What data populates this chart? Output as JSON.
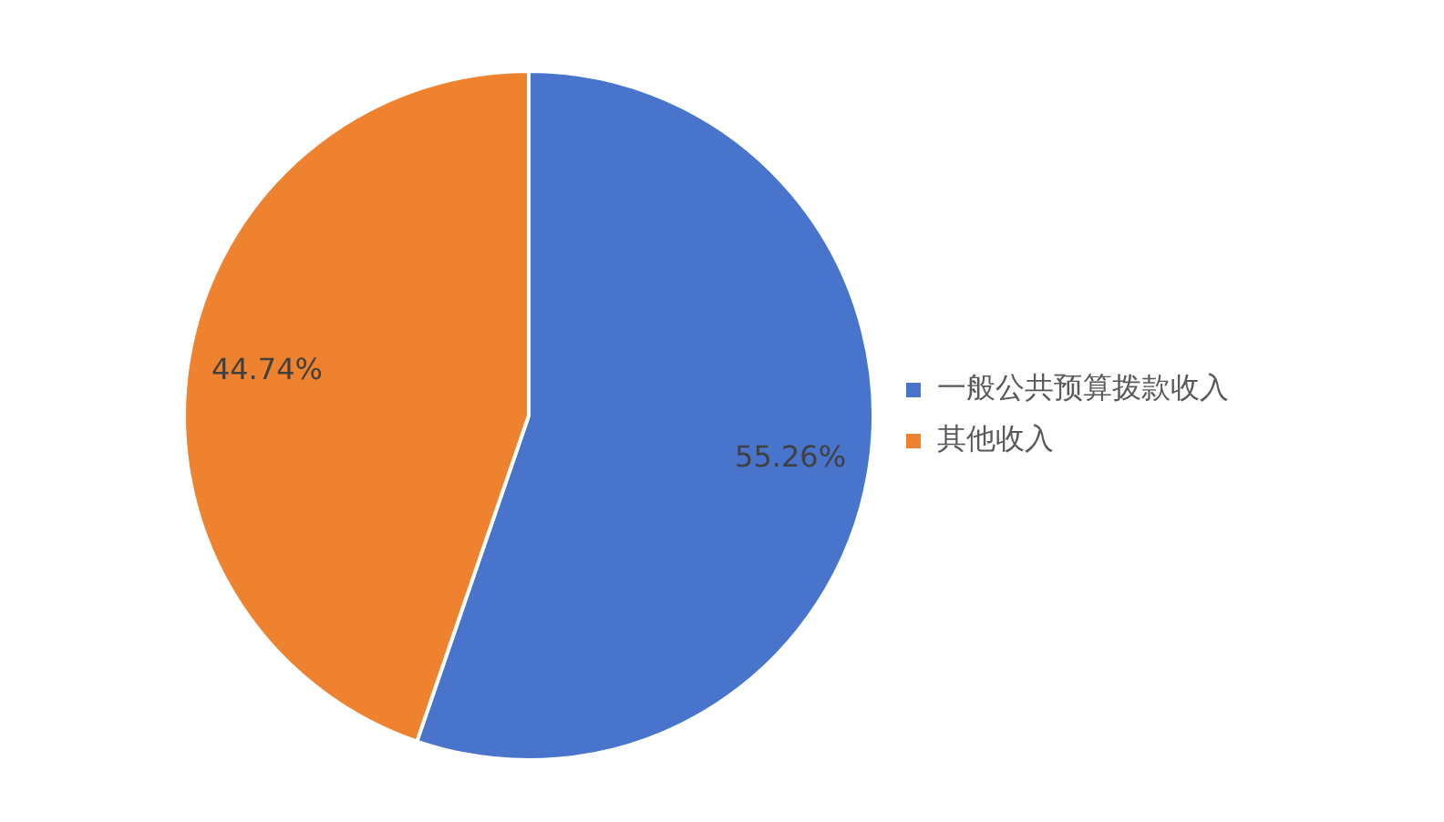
{
  "chart_data": {
    "type": "pie",
    "categories": [
      "一般公共预算拨款收入",
      "其他收入"
    ],
    "values": [
      55.26,
      44.74
    ],
    "colors": [
      "#4874cb",
      "#ee822f"
    ],
    "value_labels": [
      "55.26%",
      "44.74%"
    ],
    "legend": "right"
  }
}
